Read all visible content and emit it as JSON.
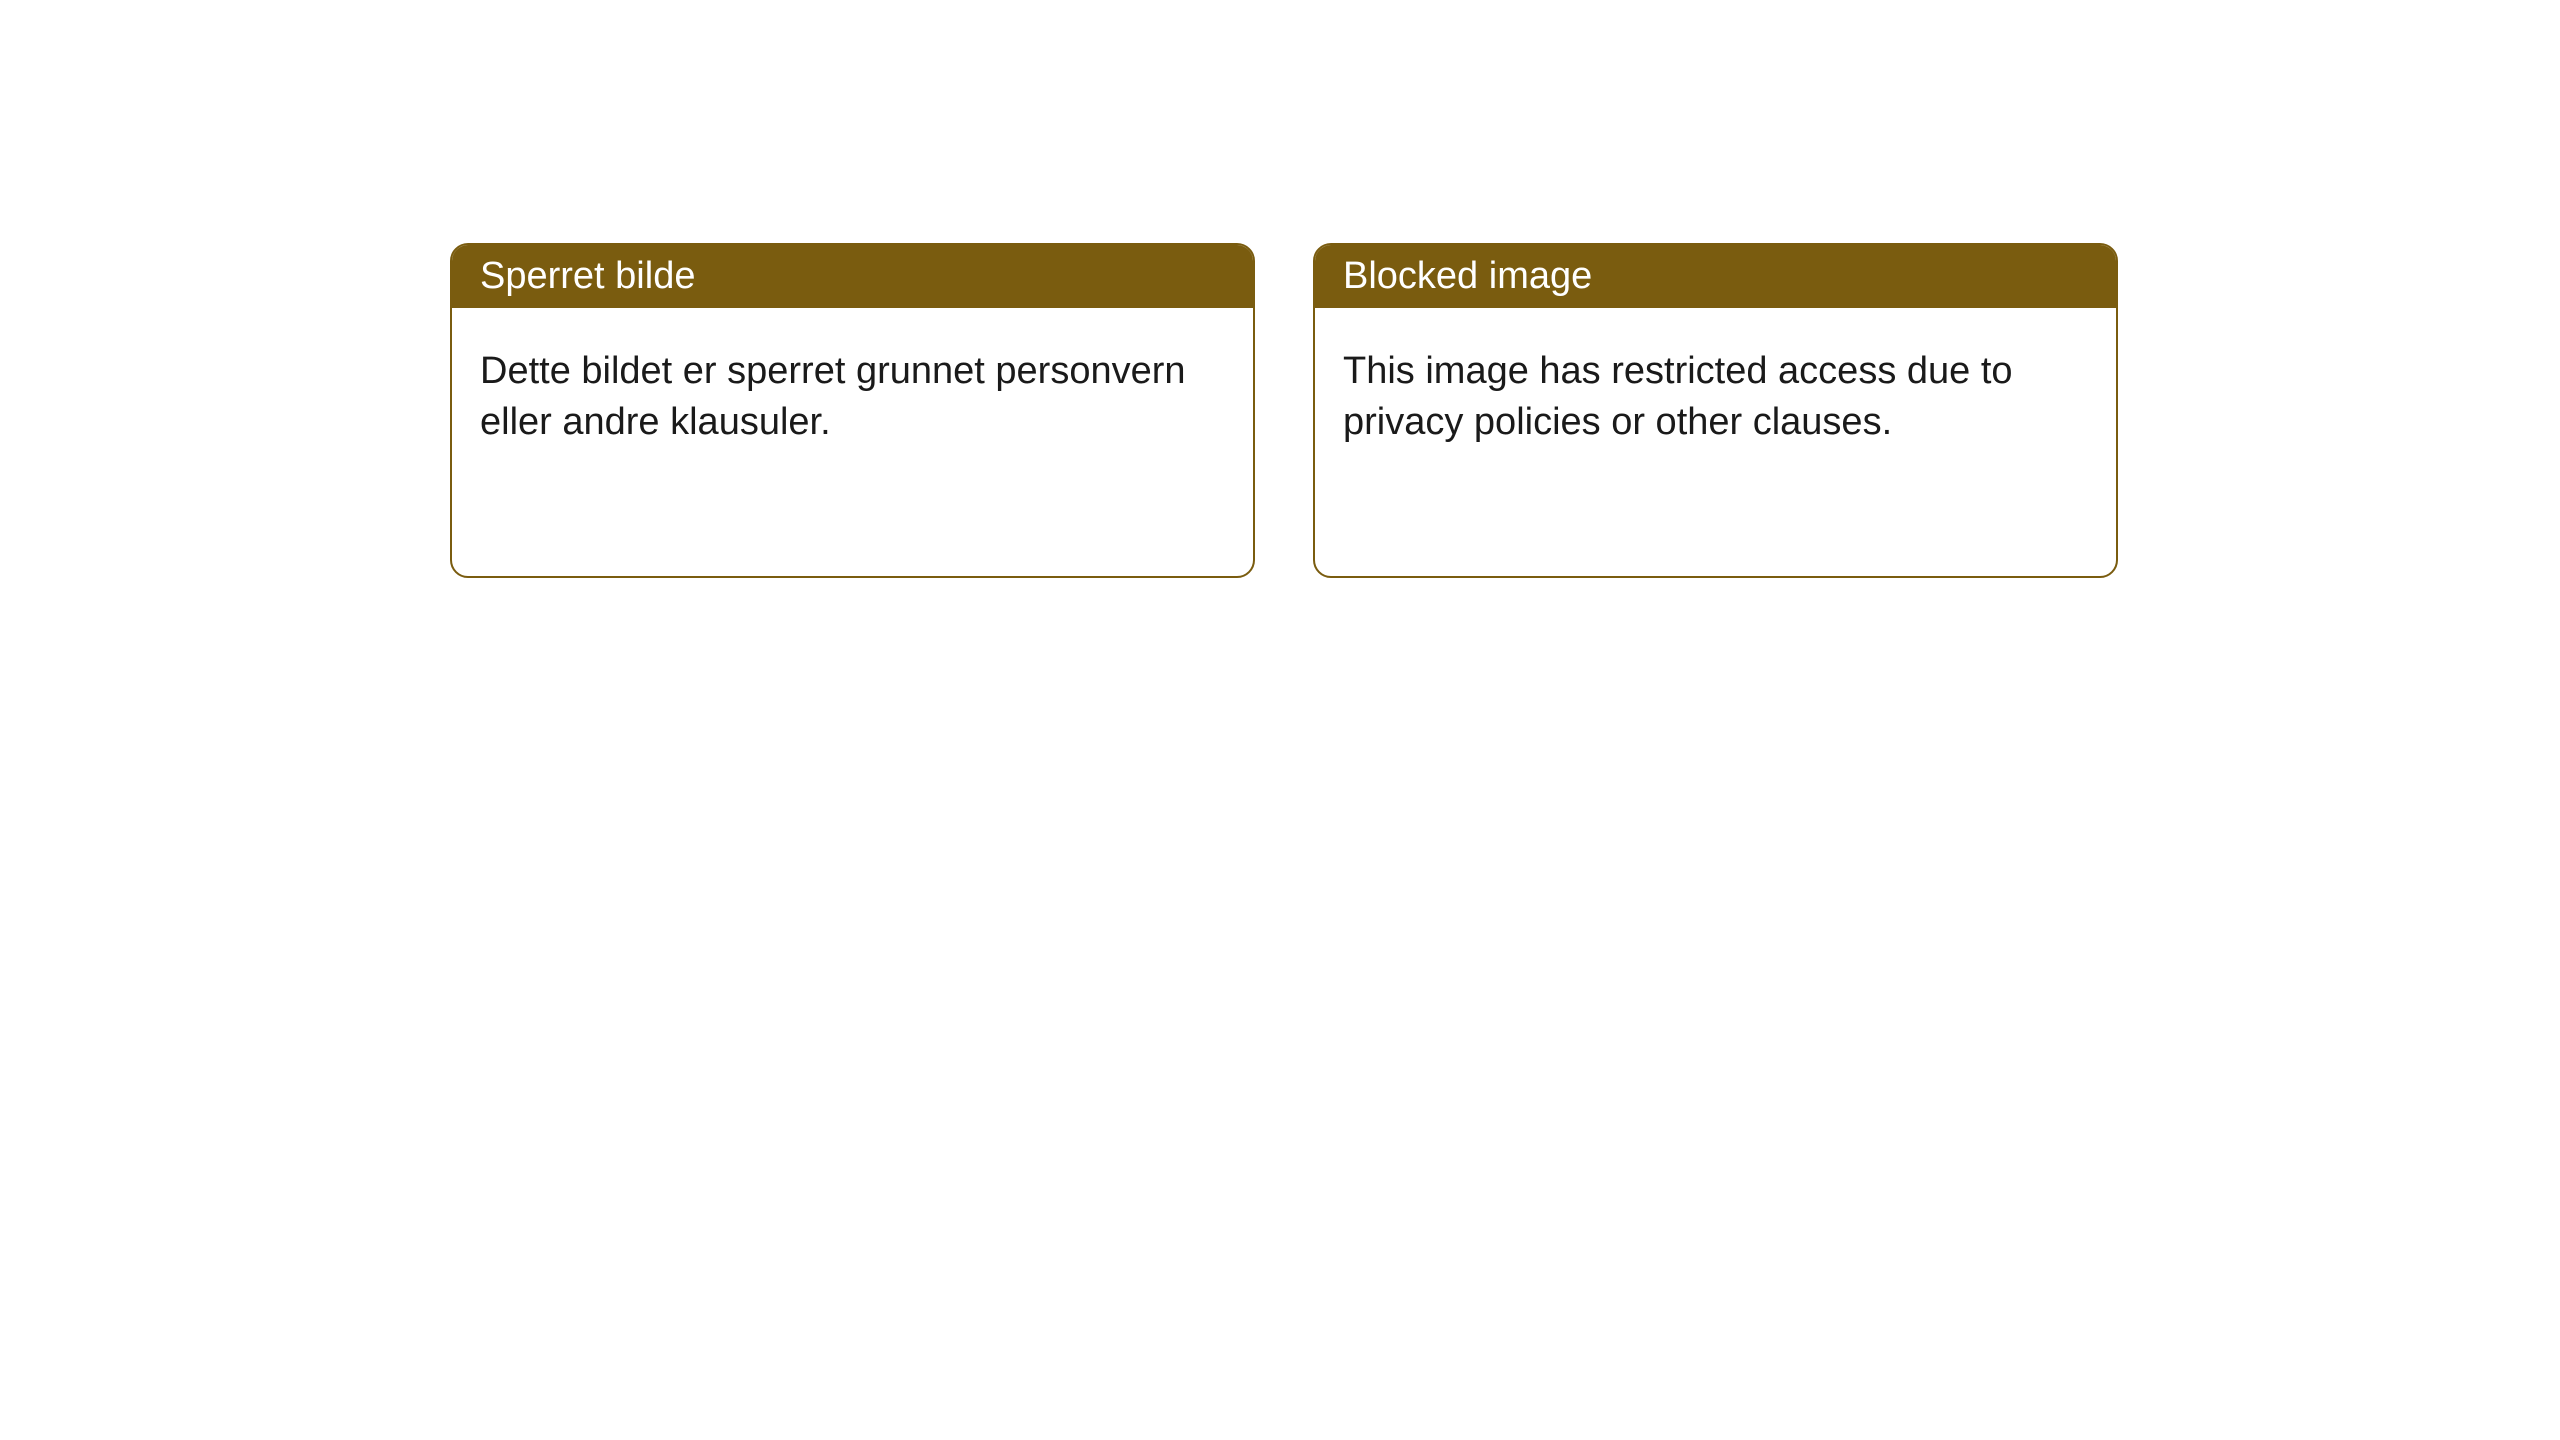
{
  "layout": {
    "background_color": "#ffffff",
    "card_border_color": "#7a5c0f",
    "card_header_bg": "#7a5c0f",
    "card_header_text_color": "#ffffff",
    "card_body_text_color": "#1a1a1a",
    "card_border_radius": 18,
    "header_fontsize": 38,
    "body_fontsize": 38
  },
  "cards": [
    {
      "title": "Sperret bilde",
      "body": "Dette bildet er sperret grunnet personvern eller andre klausuler."
    },
    {
      "title": "Blocked image",
      "body": "This image has restricted access due to privacy policies or other clauses."
    }
  ]
}
